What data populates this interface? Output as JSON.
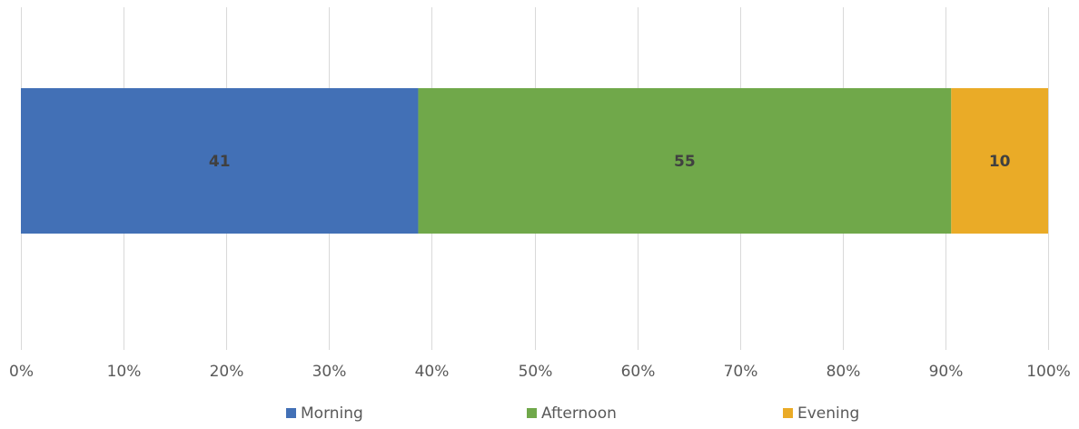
{
  "chart_data": {
    "type": "bar",
    "orientation": "horizontal",
    "stacked": "percent",
    "title": "",
    "xlabel": "",
    "ylabel": "",
    "xlim": [
      0,
      100
    ],
    "x_ticks": [
      "0%",
      "10%",
      "20%",
      "30%",
      "40%",
      "50%",
      "60%",
      "70%",
      "80%",
      "90%",
      "100%"
    ],
    "grid": true,
    "legend": "bottom",
    "series": [
      {
        "name": "Morning",
        "values": [
          41
        ],
        "color": "#4270b6"
      },
      {
        "name": "Afternoon",
        "values": [
          55
        ],
        "color": "#70a84a"
      },
      {
        "name": "Evening",
        "values": [
          10
        ],
        "color": "#eaab27"
      }
    ]
  }
}
